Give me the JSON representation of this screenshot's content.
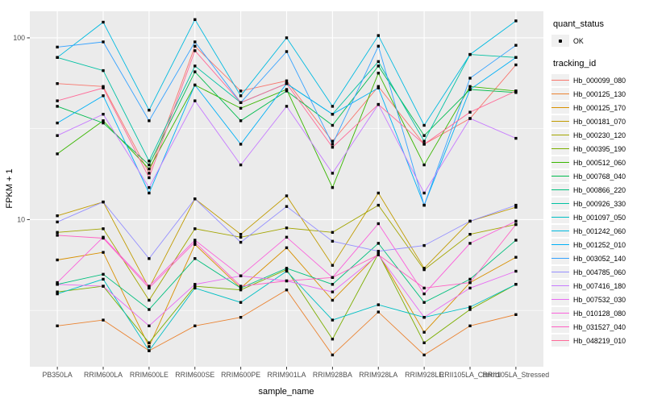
{
  "chart_data": {
    "type": "line",
    "title": "",
    "xlabel": "sample_name",
    "ylabel": "FPKM + 1",
    "yscale": "log10",
    "ylim": [
      1.55,
      140
    ],
    "yticks": [
      10,
      100
    ],
    "ytick_labels": [
      "10",
      "100"
    ],
    "yticks_minor": [
      3.162,
      31.62
    ],
    "grid": true,
    "legend_position": "right",
    "point_color": "#000000",
    "categories": [
      "PB350LA",
      "RRIM600LA",
      "RRIM600LE",
      "RRIM600SE",
      "RRIM600PE",
      "RRIM901LA",
      "RRIM928BA",
      "RRIM928LA",
      "RRIM928LE",
      "RRII105LA_Control",
      "RRII105LA_Stressed"
    ],
    "series": [
      {
        "name": "Hb_000099_080",
        "color": "#F8766D",
        "values": [
          56,
          54,
          18,
          90,
          51,
          58,
          27,
          54,
          26,
          36,
          71
        ]
      },
      {
        "name": "Hb_000125_130",
        "color": "#EA8331",
        "values": [
          2.6,
          2.8,
          1.9,
          2.6,
          2.9,
          4.1,
          1.8,
          3.1,
          1.8,
          2.6,
          3.0
        ]
      },
      {
        "name": "Hb_000125_170",
        "color": "#D89000",
        "values": [
          6.0,
          6.6,
          2.0,
          7.3,
          4.2,
          7.0,
          3.6,
          6.5,
          2.4,
          4.5,
          6.2
        ]
      },
      {
        "name": "Hb_000181_070",
        "color": "#C09B00",
        "values": [
          10.5,
          12.5,
          4.2,
          13.0,
          8.3,
          13.5,
          5.6,
          14.0,
          5.4,
          9.8,
          11.7
        ]
      },
      {
        "name": "Hb_000230_120",
        "color": "#A3A500",
        "values": [
          8.5,
          8.9,
          3.6,
          8.9,
          8.0,
          9.0,
          8.5,
          12.0,
          5.3,
          8.3,
          9.4
        ]
      },
      {
        "name": "Hb_000395_190",
        "color": "#7CAE00",
        "values": [
          4.0,
          4.3,
          2.1,
          4.3,
          4.1,
          5.3,
          2.2,
          6.5,
          2.1,
          3.2,
          4.4
        ]
      },
      {
        "name": "Hb_000512_060",
        "color": "#39B600",
        "values": [
          23,
          35,
          19,
          55,
          41,
          52,
          15,
          64,
          20,
          54,
          51
        ]
      },
      {
        "name": "Hb_000768_040",
        "color": "#00BB4E",
        "values": [
          42,
          34,
          20,
          65,
          35,
          51,
          33,
          70,
          29,
          52,
          50
        ]
      },
      {
        "name": "Hb_000866_220",
        "color": "#00BF7D",
        "values": [
          4.4,
          5.0,
          3.2,
          6.1,
          4.2,
          5.4,
          4.4,
          7.4,
          3.5,
          4.7,
          7.7
        ]
      },
      {
        "name": "Hb_000926_330",
        "color": "#00C1A3",
        "values": [
          78,
          66,
          21,
          70,
          44,
          56,
          38,
          74,
          27,
          81,
          78
        ]
      },
      {
        "name": "Hb_001097_050",
        "color": "#00BFC4",
        "values": [
          3.9,
          4.7,
          1.9,
          4.2,
          3.5,
          5.2,
          2.8,
          3.4,
          2.9,
          3.3,
          4.4
        ]
      },
      {
        "name": "Hb_001242_060",
        "color": "#00BAE0",
        "values": [
          78,
          122,
          40,
          126,
          48,
          100,
          42,
          103,
          33,
          81,
          124
        ]
      },
      {
        "name": "Hb_001252_010",
        "color": "#00B0F6",
        "values": [
          34,
          48,
          14,
          55,
          26,
          56,
          38,
          53,
          12,
          52,
          78
        ]
      },
      {
        "name": "Hb_003052_140",
        "color": "#35A2FF",
        "values": [
          89,
          95,
          35,
          95,
          44,
          84,
          26,
          90,
          12,
          60,
          91
        ]
      },
      {
        "name": "Hb_004785_060",
        "color": "#9590FF",
        "values": [
          9.7,
          12.5,
          6.1,
          13.0,
          7.5,
          11.8,
          7.6,
          6.7,
          7.2,
          9.8,
          12.0
        ]
      },
      {
        "name": "Hb_007416_180",
        "color": "#C77CFF",
        "values": [
          29,
          38,
          15,
          45,
          20,
          42,
          18,
          43,
          14,
          36,
          28
        ]
      },
      {
        "name": "Hb_007532_030",
        "color": "#E76BF3",
        "values": [
          4.4,
          4.3,
          2.6,
          4.4,
          4.9,
          4.6,
          4.0,
          6.4,
          2.9,
          4.2,
          5.2
        ]
      },
      {
        "name": "Hb_010128_080",
        "color": "#FA62DB",
        "values": [
          4.5,
          8.0,
          4.3,
          7.7,
          4.9,
          8.0,
          4.8,
          9.5,
          3.9,
          7.4,
          9.8
        ]
      },
      {
        "name": "Hb_031527_040",
        "color": "#FF61C3",
        "values": [
          8.2,
          7.9,
          4.2,
          7.5,
          4.3,
          4.6,
          4.8,
          6.4,
          4.2,
          4.5,
          9.4
        ]
      },
      {
        "name": "Hb_048219_010",
        "color": "#FF6A98",
        "values": [
          45,
          53,
          17,
          85,
          44,
          56,
          25,
          43,
          26,
          39,
          51
        ]
      }
    ],
    "legend": {
      "quant_status": {
        "title": "quant_status",
        "items": [
          {
            "label": "OK"
          }
        ]
      },
      "tracking_id": {
        "title": "tracking_id"
      }
    }
  },
  "theme": {
    "panel_bg": "#EBEBEB",
    "grid_color": "#FFFFFF",
    "tick_color": "#333333",
    "tick_text_color": "#4D4D4D",
    "key_bg": "#F0F0F0"
  }
}
